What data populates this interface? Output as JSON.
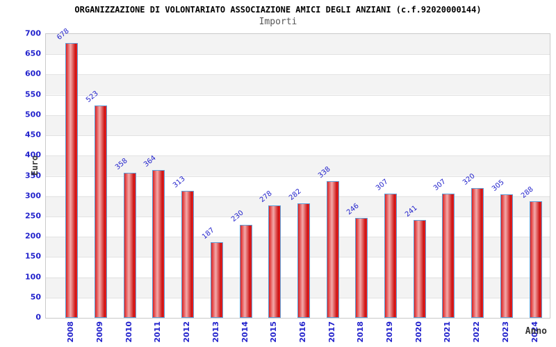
{
  "header": {
    "title": "ORGANIZZAZIONE DI VOLONTARIATO ASSOCIAZIONE AMICI DEGLI ANZIANI (c.f.92020000144)",
    "subtitle": "Importi"
  },
  "axes": {
    "y_label": "Euro",
    "x_label": "Anno"
  },
  "colors": {
    "tick_label_blue": "#2222cc",
    "value_label_blue": "#2222cc",
    "bar_border_blue": "#5d9fd8",
    "bar_red_dark": "#cc1111",
    "bar_red_main": "#dd2222",
    "bar_red_highlight": "#f3aaaa",
    "band_gray": "#f3f3f3",
    "gridline_gray": "#e2e2e2",
    "plot_border_gray": "#c9c9c9",
    "title_black": "#000000",
    "subtitle_gray": "#555555",
    "axis_title_gray": "#333333"
  },
  "chart_data": {
    "type": "bar",
    "title": "ORGANIZZAZIONE DI VOLONTARIATO ASSOCIAZIONE AMICI DEGLI ANZIANI (c.f.92020000144)",
    "subtitle": "Importi",
    "xlabel": "Anno",
    "ylabel": "Euro",
    "categories": [
      "2008",
      "2009",
      "2010",
      "2011",
      "2012",
      "2013",
      "2014",
      "2015",
      "2016",
      "2017",
      "2018",
      "2019",
      "2020",
      "2021",
      "2022",
      "2023",
      "2024"
    ],
    "values": [
      678,
      523,
      358,
      364,
      313,
      187,
      230,
      278,
      282,
      338,
      246,
      307,
      241,
      307,
      320,
      305,
      288
    ],
    "ylim": [
      0,
      700
    ],
    "ytick_step": 50,
    "yticks": [
      0,
      50,
      100,
      150,
      200,
      250,
      300,
      350,
      400,
      450,
      500,
      550,
      600,
      650,
      700
    ],
    "grid": true,
    "alternating_bands": true,
    "legend_position": "none",
    "bar_value_labels_shown": true,
    "bar_value_label_rotation_deg": -40,
    "x_tick_label_rotation_deg": -90
  }
}
